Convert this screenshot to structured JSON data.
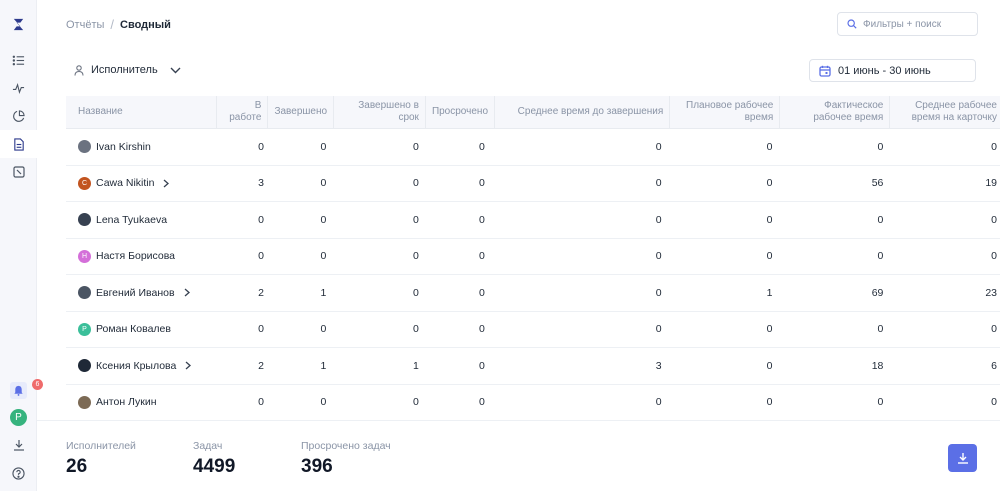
{
  "breadcrumb": {
    "parent": "Отчёты",
    "separator": "/",
    "current": "Сводный"
  },
  "search": {
    "placeholder": "Фильтры + поиск",
    "value": ""
  },
  "group_by": {
    "label": "Исполнитель"
  },
  "date_range": {
    "label": "01 июнь - 30 июнь"
  },
  "sidebar": {
    "items": [
      {
        "icon": "list-icon"
      },
      {
        "icon": "activity-icon"
      },
      {
        "icon": "pie-chart-icon"
      },
      {
        "icon": "document-icon",
        "active": true
      },
      {
        "icon": "board-icon"
      }
    ],
    "notifications": {
      "count": "6"
    },
    "user_initial": "Р"
  },
  "table": {
    "headers": [
      "Название",
      "В работе",
      "Завершено",
      "Завершено в срок",
      "Просрочено",
      "Среднее время до завершения",
      "Плановое рабочее время",
      "Фактическое рабочее время",
      "Среднее рабочее время на карточку"
    ],
    "rows": [
      {
        "name": "Ivan Kirshin",
        "avatar": "photo",
        "avatar_color": "#6b7280",
        "initial": "",
        "expandable": false,
        "values": [
          "0",
          "0",
          "0",
          "0",
          "0",
          "0",
          "0",
          "0"
        ]
      },
      {
        "name": "Саwa Nikitin",
        "avatar": "initial",
        "avatar_color": "#c2541f",
        "initial": "С",
        "expandable": true,
        "values": [
          "3",
          "0",
          "0",
          "0",
          "0",
          "0",
          "56",
          "19"
        ]
      },
      {
        "name": "Lena Tyukaeva",
        "avatar": "photo",
        "avatar_color": "#374151",
        "initial": "",
        "expandable": false,
        "values": [
          "0",
          "0",
          "0",
          "0",
          "0",
          "0",
          "0",
          "0"
        ]
      },
      {
        "name": "Настя Борисова",
        "avatar": "initial",
        "avatar_color": "#d46fd9",
        "initial": "Н",
        "expandable": false,
        "values": [
          "0",
          "0",
          "0",
          "0",
          "0",
          "0",
          "0",
          "0"
        ]
      },
      {
        "name": "Евгений Иванов",
        "avatar": "photo",
        "avatar_color": "#4b5563",
        "initial": "",
        "expandable": true,
        "values": [
          "2",
          "1",
          "0",
          "0",
          "0",
          "1",
          "69",
          "23"
        ]
      },
      {
        "name": "Роман Ковалев",
        "avatar": "initial",
        "avatar_color": "#3bbf9a",
        "initial": "Р",
        "expandable": false,
        "values": [
          "0",
          "0",
          "0",
          "0",
          "0",
          "0",
          "0",
          "0"
        ]
      },
      {
        "name": "Ксения Крылова",
        "avatar": "photo",
        "avatar_color": "#1f2937",
        "initial": "",
        "expandable": true,
        "values": [
          "2",
          "1",
          "1",
          "0",
          "3",
          "0",
          "18",
          "6"
        ]
      },
      {
        "name": "Антон Лукин",
        "avatar": "photo",
        "avatar_color": "#7c6a55",
        "initial": "",
        "expandable": false,
        "values": [
          "0",
          "0",
          "0",
          "0",
          "0",
          "0",
          "0",
          "0"
        ]
      }
    ]
  },
  "footer": {
    "stats": [
      {
        "label": "Исполнителей",
        "value": "26"
      },
      {
        "label": "Задач",
        "value": "4499"
      },
      {
        "label": "Просрочено задач",
        "value": "396"
      }
    ]
  },
  "colors": {
    "accent": "#5b6fe6",
    "logo": "#2d3a8c"
  }
}
